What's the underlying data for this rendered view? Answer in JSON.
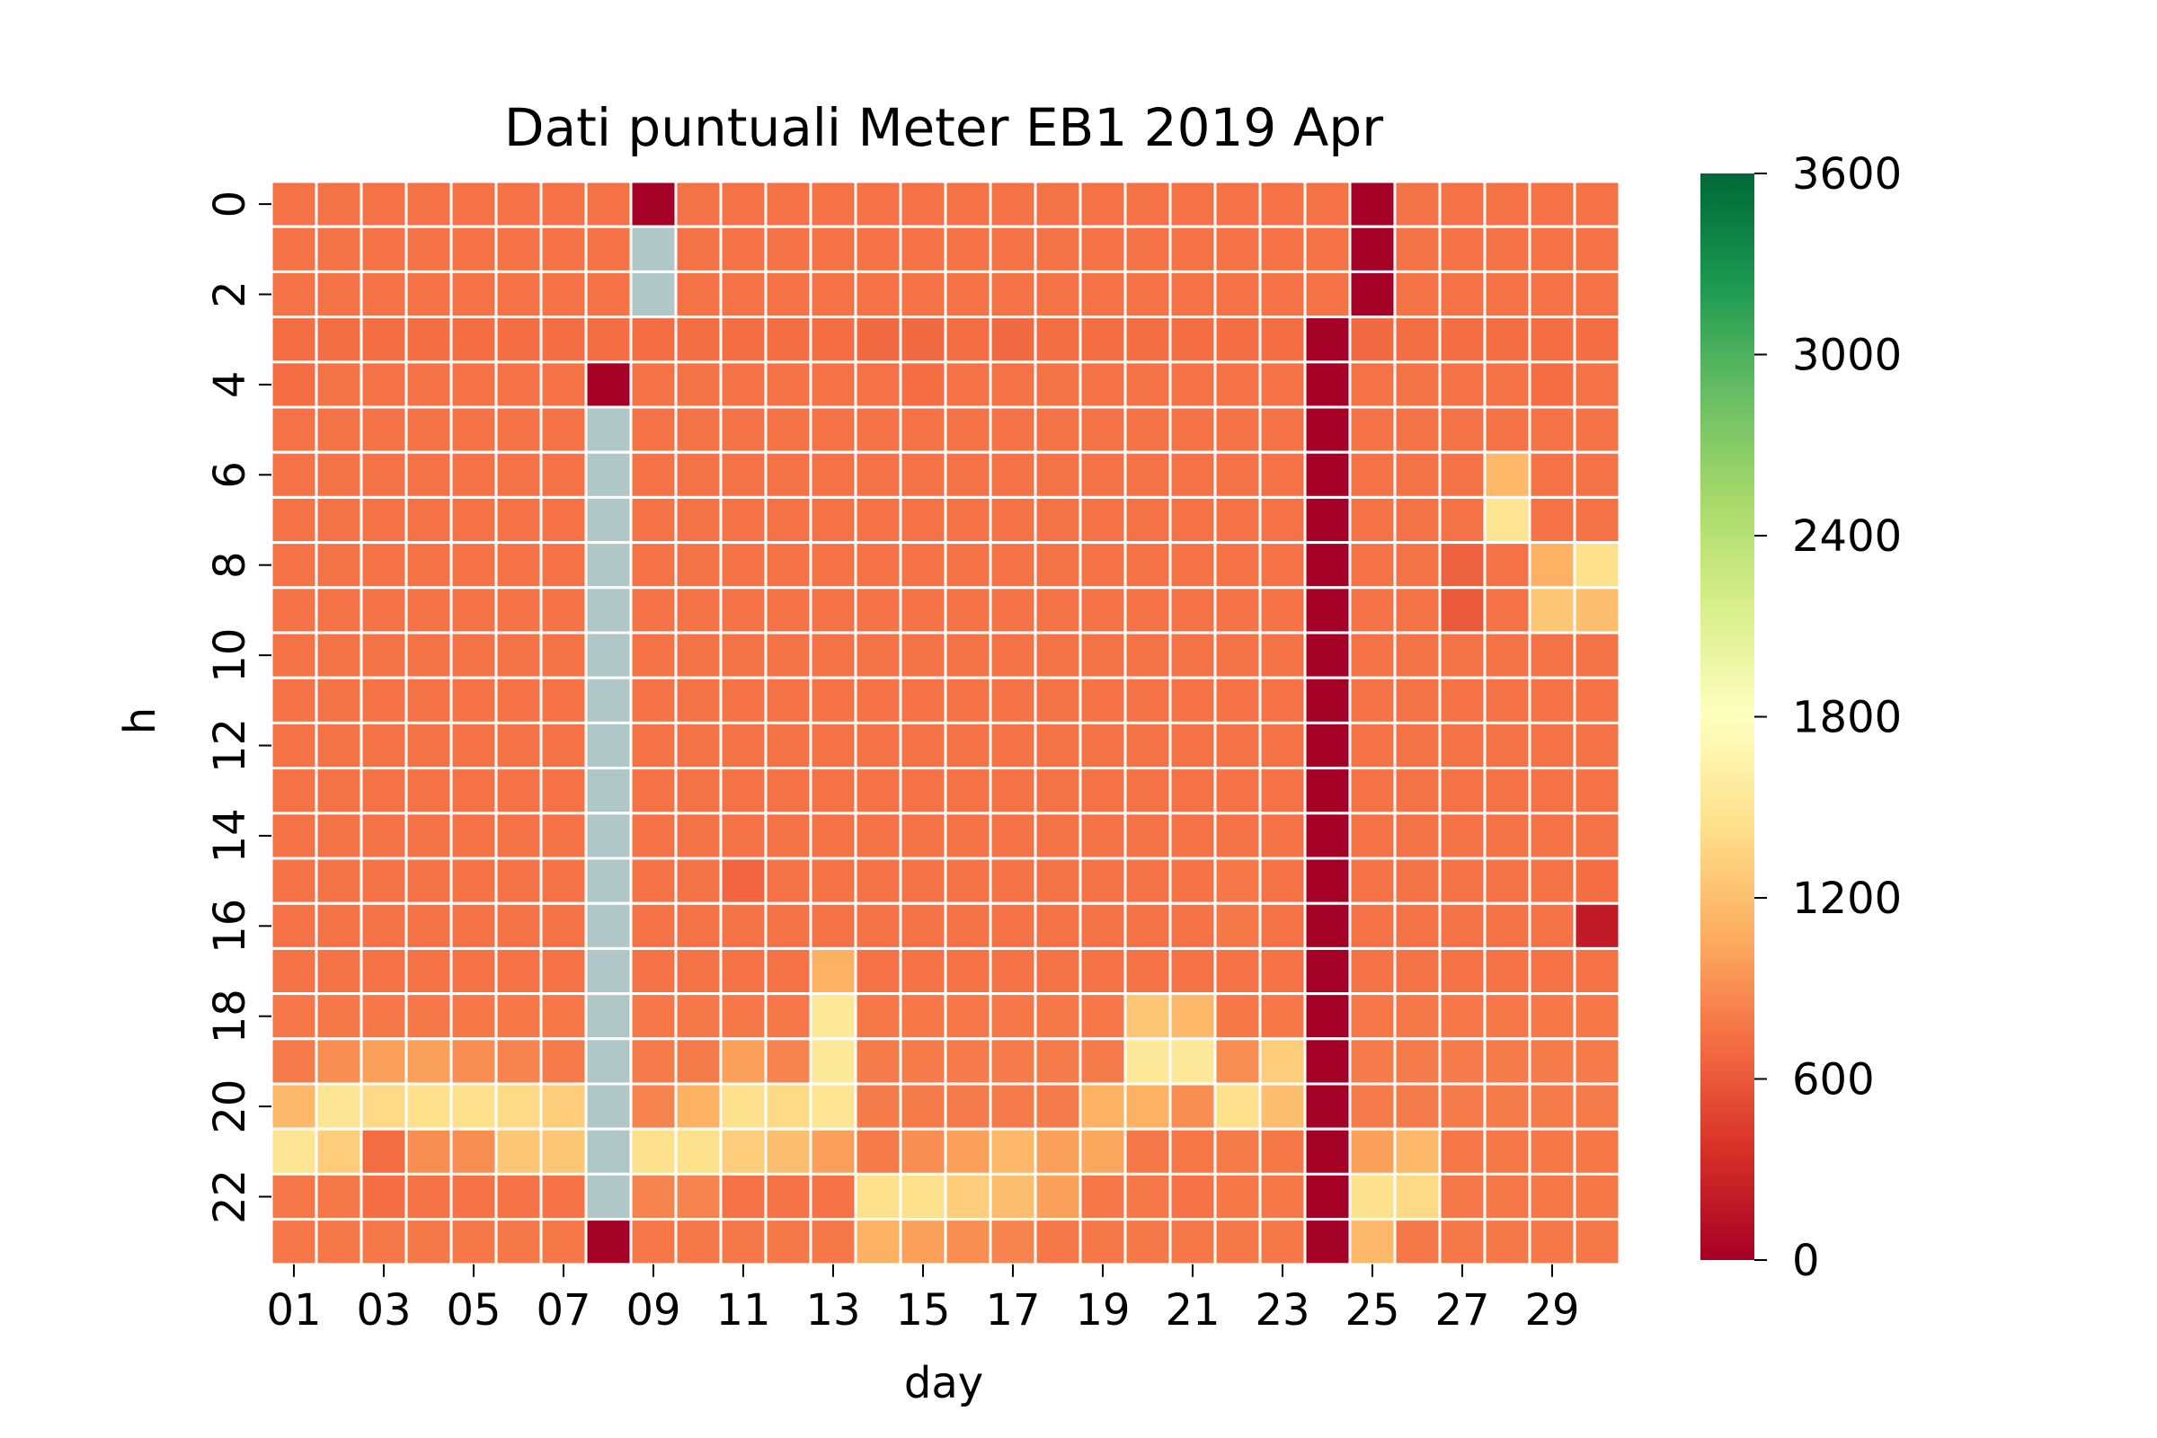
{
  "chart_data": {
    "type": "heatmap",
    "title": "Dati puntuali Meter EB1 2019 Apr",
    "xlabel": "day",
    "ylabel": "h",
    "x": [
      "01",
      "02",
      "03",
      "04",
      "05",
      "06",
      "07",
      "08",
      "09",
      "10",
      "11",
      "12",
      "13",
      "14",
      "15",
      "16",
      "17",
      "18",
      "19",
      "20",
      "21",
      "22",
      "23",
      "24",
      "25",
      "26",
      "27",
      "28",
      "29",
      "30"
    ],
    "y": [
      0,
      1,
      2,
      3,
      4,
      5,
      6,
      7,
      8,
      9,
      10,
      11,
      12,
      13,
      14,
      15,
      16,
      17,
      18,
      19,
      20,
      21,
      22,
      23
    ],
    "x_tick_labels": [
      "01",
      "03",
      "05",
      "07",
      "09",
      "11",
      "13",
      "15",
      "17",
      "19",
      "21",
      "23",
      "25",
      "27",
      "29"
    ],
    "y_tick_labels": [
      "0",
      "2",
      "4",
      "6",
      "8",
      "10",
      "12",
      "14",
      "16",
      "18",
      "20",
      "22"
    ],
    "colormap": "RdYlGn",
    "vmin": 0,
    "vmax": 3600,
    "colorbar_ticks": [
      0,
      600,
      1200,
      1800,
      2400,
      3000,
      3600
    ],
    "colorbar_tick_labels": [
      "0",
      "600",
      "1200",
      "1800",
      "2400",
      "3000",
      "3600"
    ],
    "missing_color": "#b0c7c7",
    "grid_color": "#ffffff",
    "values": [
      [
        750,
        750,
        750,
        750,
        750,
        750,
        750,
        750,
        0,
        750,
        750,
        750,
        750,
        750,
        750,
        750,
        750,
        750,
        750,
        750,
        750,
        750,
        750,
        750,
        0,
        750,
        750,
        750,
        750,
        750
      ],
      [
        750,
        750,
        750,
        750,
        750,
        750,
        750,
        750,
        null,
        750,
        750,
        750,
        750,
        750,
        750,
        750,
        750,
        750,
        750,
        750,
        750,
        750,
        750,
        750,
        0,
        750,
        750,
        750,
        750,
        750
      ],
      [
        750,
        750,
        750,
        750,
        750,
        750,
        750,
        750,
        null,
        750,
        750,
        750,
        750,
        750,
        750,
        750,
        750,
        750,
        750,
        750,
        750,
        750,
        750,
        750,
        0,
        750,
        750,
        750,
        750,
        750
      ],
      [
        720,
        720,
        720,
        720,
        720,
        720,
        720,
        720,
        720,
        720,
        720,
        720,
        720,
        700,
        700,
        720,
        700,
        720,
        720,
        720,
        720,
        720,
        720,
        0,
        700,
        720,
        720,
        720,
        720,
        720
      ],
      [
        720,
        750,
        750,
        750,
        750,
        750,
        750,
        0,
        750,
        750,
        750,
        750,
        750,
        750,
        720,
        750,
        750,
        750,
        750,
        750,
        750,
        750,
        750,
        0,
        750,
        750,
        750,
        750,
        720,
        750
      ],
      [
        750,
        750,
        750,
        750,
        750,
        750,
        750,
        null,
        750,
        750,
        750,
        750,
        750,
        750,
        750,
        750,
        750,
        750,
        750,
        750,
        750,
        750,
        750,
        0,
        750,
        750,
        750,
        750,
        750,
        750
      ],
      [
        750,
        750,
        750,
        750,
        750,
        750,
        750,
        null,
        750,
        750,
        750,
        750,
        750,
        750,
        750,
        750,
        750,
        750,
        750,
        750,
        750,
        750,
        750,
        0,
        750,
        750,
        750,
        1150,
        750,
        750
      ],
      [
        750,
        750,
        750,
        750,
        750,
        750,
        750,
        null,
        750,
        750,
        750,
        750,
        750,
        750,
        750,
        750,
        750,
        750,
        750,
        750,
        750,
        750,
        750,
        0,
        750,
        750,
        750,
        1500,
        750,
        750
      ],
      [
        750,
        750,
        750,
        750,
        750,
        750,
        750,
        null,
        750,
        750,
        750,
        750,
        750,
        750,
        750,
        750,
        750,
        750,
        750,
        750,
        750,
        750,
        750,
        0,
        750,
        750,
        650,
        750,
        1100,
        1450
      ],
      [
        750,
        750,
        750,
        750,
        750,
        750,
        750,
        null,
        750,
        750,
        750,
        750,
        750,
        750,
        750,
        750,
        750,
        750,
        750,
        750,
        750,
        750,
        750,
        0,
        750,
        750,
        600,
        750,
        1250,
        1200
      ],
      [
        750,
        750,
        750,
        750,
        750,
        750,
        750,
        null,
        750,
        750,
        750,
        750,
        750,
        750,
        750,
        750,
        750,
        750,
        750,
        750,
        750,
        750,
        750,
        0,
        750,
        750,
        750,
        750,
        750,
        750
      ],
      [
        750,
        750,
        750,
        750,
        750,
        750,
        750,
        null,
        750,
        750,
        750,
        750,
        750,
        750,
        750,
        750,
        750,
        750,
        750,
        750,
        750,
        750,
        750,
        0,
        750,
        750,
        750,
        750,
        750,
        750
      ],
      [
        750,
        750,
        750,
        750,
        750,
        750,
        750,
        null,
        750,
        750,
        750,
        750,
        750,
        750,
        750,
        750,
        750,
        750,
        750,
        750,
        750,
        750,
        750,
        0,
        750,
        750,
        750,
        750,
        750,
        750
      ],
      [
        750,
        750,
        750,
        750,
        750,
        750,
        750,
        null,
        750,
        750,
        750,
        750,
        750,
        750,
        750,
        750,
        750,
        750,
        750,
        750,
        750,
        750,
        750,
        0,
        750,
        750,
        750,
        750,
        750,
        750
      ],
      [
        750,
        750,
        750,
        750,
        750,
        750,
        750,
        null,
        750,
        750,
        750,
        750,
        750,
        750,
        750,
        750,
        750,
        750,
        750,
        750,
        750,
        750,
        750,
        0,
        750,
        750,
        750,
        750,
        750,
        750
      ],
      [
        750,
        750,
        750,
        750,
        750,
        750,
        750,
        null,
        750,
        750,
        680,
        750,
        750,
        750,
        750,
        750,
        750,
        750,
        750,
        750,
        750,
        780,
        750,
        0,
        750,
        750,
        750,
        750,
        750,
        720
      ],
      [
        750,
        750,
        750,
        750,
        750,
        750,
        750,
        null,
        750,
        750,
        750,
        750,
        750,
        750,
        750,
        750,
        750,
        750,
        750,
        750,
        750,
        780,
        750,
        0,
        750,
        750,
        750,
        750,
        750,
        200
      ],
      [
        750,
        750,
        750,
        750,
        750,
        750,
        750,
        null,
        750,
        750,
        750,
        750,
        1100,
        750,
        750,
        750,
        750,
        750,
        750,
        750,
        750,
        750,
        750,
        0,
        750,
        750,
        750,
        750,
        750,
        750
      ],
      [
        780,
        780,
        780,
        780,
        780,
        780,
        780,
        null,
        780,
        780,
        780,
        780,
        1550,
        780,
        780,
        780,
        780,
        780,
        780,
        1250,
        1150,
        780,
        780,
        0,
        780,
        780,
        780,
        780,
        780,
        780
      ],
      [
        800,
        900,
        1000,
        1000,
        900,
        850,
        800,
        null,
        800,
        800,
        1000,
        850,
        1550,
        800,
        800,
        800,
        800,
        800,
        800,
        1550,
        1550,
        900,
        1300,
        0,
        800,
        800,
        800,
        800,
        800,
        800
      ],
      [
        1150,
        1500,
        1400,
        1450,
        1450,
        1400,
        1300,
        null,
        850,
        1100,
        1450,
        1400,
        1500,
        800,
        800,
        800,
        800,
        800,
        1100,
        1100,
        900,
        1450,
        1200,
        0,
        800,
        800,
        800,
        800,
        800,
        800
      ],
      [
        1500,
        1300,
        720,
        900,
        900,
        1250,
        1250,
        null,
        1450,
        1450,
        1300,
        1200,
        1000,
        800,
        900,
        1000,
        1150,
        1000,
        1050,
        780,
        780,
        800,
        780,
        0,
        1000,
        1150,
        780,
        780,
        780,
        780
      ],
      [
        780,
        780,
        720,
        750,
        750,
        750,
        750,
        null,
        850,
        850,
        750,
        750,
        750,
        1450,
        1450,
        1300,
        1200,
        1000,
        780,
        780,
        750,
        780,
        780,
        0,
        1450,
        1400,
        780,
        780,
        780,
        780
      ],
      [
        780,
        780,
        780,
        780,
        780,
        780,
        780,
        0,
        780,
        780,
        780,
        780,
        780,
        1100,
        1000,
        900,
        850,
        780,
        780,
        780,
        780,
        780,
        780,
        0,
        1150,
        780,
        780,
        780,
        780,
        780
      ]
    ]
  }
}
